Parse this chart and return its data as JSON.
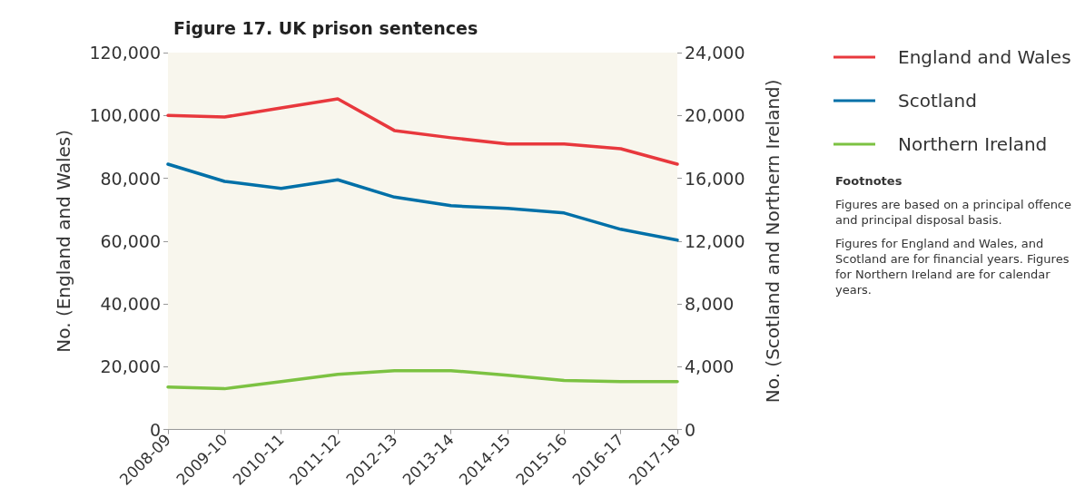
{
  "chart_data": {
    "type": "line",
    "title": "Figure 17. UK prison sentences",
    "ylabel": "No. (England and Wales)",
    "y2label": "No. (Scotland and Northern Ireland)",
    "categories": [
      "2008-09",
      "2009-10",
      "2010-11",
      "2011-12",
      "2012-13",
      "2013-14",
      "2014-15",
      "2015-16",
      "2016-17",
      "2017-18"
    ],
    "series": [
      {
        "name": "England and Wales",
        "color": "#e8383d",
        "values": [
          100000,
          99500,
          102400,
          105300,
          95200,
          92900,
          90900,
          90900,
          89400,
          84500
        ]
      },
      {
        "name": "Scotland",
        "color": "#0070a8",
        "axis": "y2",
        "values": [
          16900,
          15800,
          15350,
          15900,
          14800,
          14250,
          14080,
          13790,
          12750,
          12060
        ]
      },
      {
        "name": "Northern Ireland",
        "color": "#7cc242",
        "axis": "y2",
        "values": [
          2710,
          2600,
          3060,
          3520,
          3750,
          3750,
          3460,
          3120,
          3060,
          3060
        ]
      }
    ],
    "ylim": [
      0,
      120000
    ],
    "yticks": [
      0,
      {
        "value": 20000,
        "label": "20,000"
      },
      {
        "value": 40000,
        "label": "40,000"
      },
      {
        "value": 60000,
        "label": "60,000"
      },
      {
        "value": 80000,
        "label": "80,000"
      },
      {
        "value": 100000,
        "label": "100,000"
      },
      {
        "value": 120000,
        "label": "120,000"
      }
    ],
    "y2lim": [
      0,
      24000
    ],
    "y2ticks": [
      0,
      {
        "value": 4000,
        "label": "4,000"
      },
      {
        "value": 8000,
        "label": "8,000"
      },
      {
        "value": 12000,
        "label": "12,000"
      },
      {
        "value": 16000,
        "label": "16,000"
      },
      {
        "value": 20000,
        "label": "20,000"
      },
      {
        "value": 24000,
        "label": "24,000"
      }
    ],
    "grid": false,
    "legend": "right",
    "marker": "none",
    "line_style": "solid",
    "annotations": [
      "Footnotes",
      "Figures are based on a principal offence and principal disposal basis.",
      "Figures for England and Wales, and Scotland are for financial years. Figures for Northern Ireland are for calendar years."
    ]
  }
}
